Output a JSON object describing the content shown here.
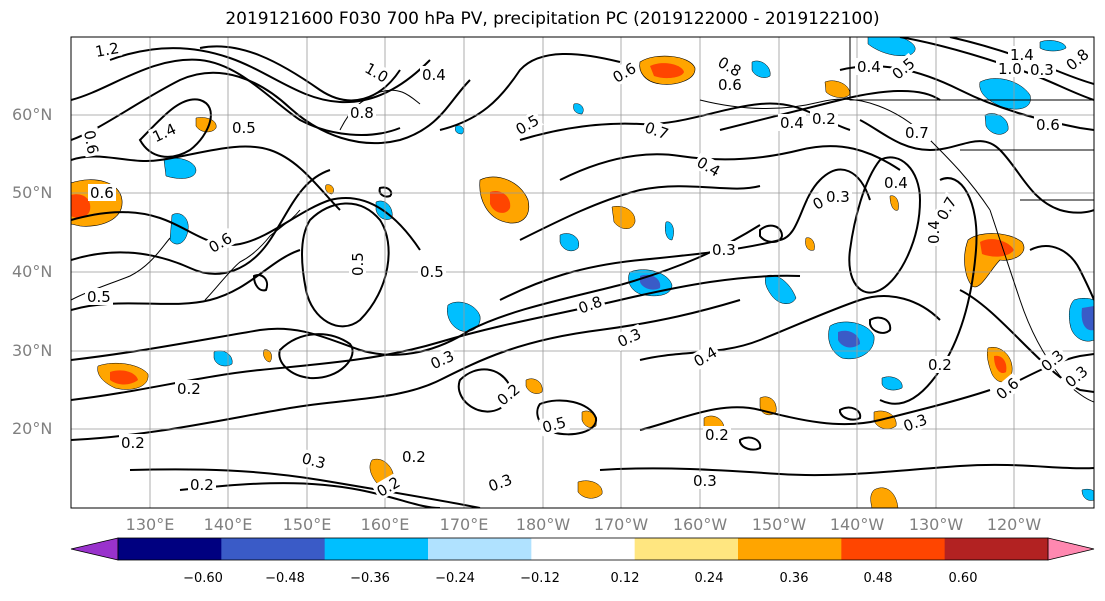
{
  "title": "2019121600 F030 700 hPa PV, precipitation PC (2019122000 - 2019122100)",
  "lat_labels": [
    "60°N",
    "50°N",
    "40°N",
    "30°N",
    "20°N"
  ],
  "lon_labels": [
    "130°E",
    "140°E",
    "150°E",
    "160°E",
    "170°E",
    "180°W",
    "170°W",
    "160°W",
    "150°W",
    "140°W",
    "130°W",
    "120°W"
  ],
  "colorbar": {
    "ticks": [
      "−0.60",
      "−0.48",
      "−0.36",
      "−0.24",
      "−0.12",
      "0.12",
      "0.24",
      "0.36",
      "0.48",
      "0.60"
    ],
    "colors": [
      "#9932cc",
      "#000080",
      "#3a5bc7",
      "#00bfff",
      "#b0e2ff",
      "#ffffff",
      "#ffe680",
      "#ffa500",
      "#ff4500",
      "#b22222",
      "#ff88b0"
    ]
  },
  "contour_labels": [
    "1.2",
    "1.0",
    "0.8",
    "1.4",
    "0.6",
    "0.5",
    "0.4",
    "0.6",
    "0.5",
    "0.8",
    "0.6",
    "0.4",
    "0.7",
    "0.4",
    "0.6",
    "0.6",
    "0.7",
    "0.6",
    "0.5",
    "0.5",
    "0.3",
    "0.4",
    "0.5",
    "0.8",
    "0.3",
    "0.3",
    "0.4",
    "0.2",
    "0.2",
    "0.3",
    "0.2",
    "0.5",
    "0.2",
    "0.3",
    "0.3",
    "0.2",
    "0.2",
    "0.2",
    "0.3",
    "0.3",
    "0.2",
    "0.3",
    "0.4",
    "0.2",
    "0.5",
    "0.3",
    "0.6",
    "0.7",
    "0.4",
    "0.8",
    "1.4",
    "1.0",
    "0.6",
    "0.3"
  ]
}
